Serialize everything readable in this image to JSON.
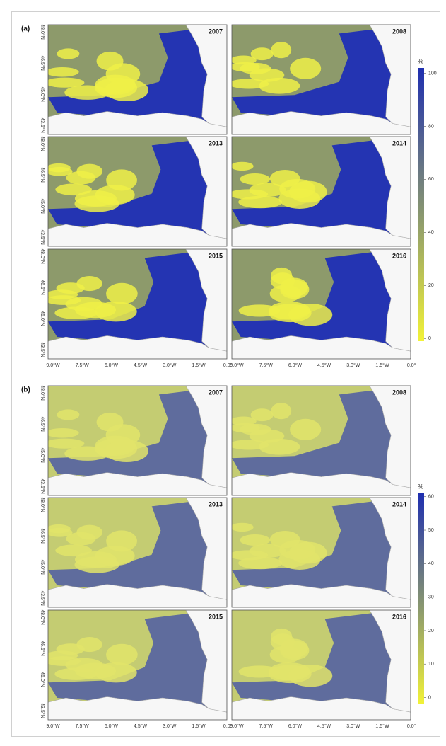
{
  "figures": [
    {
      "label": "(a)",
      "years": [
        "2007",
        "2008",
        "2013",
        "2014",
        "2015",
        "2016"
      ],
      "legend": {
        "unit": "%",
        "range": [
          -1,
          102
        ],
        "ticks": [
          0,
          20,
          40,
          60,
          80,
          100
        ]
      }
    },
    {
      "label": "(b)",
      "years": [
        "2007",
        "2008",
        "2013",
        "2014",
        "2015",
        "2016"
      ],
      "legend": {
        "unit": "%",
        "range": [
          -2,
          61
        ],
        "ticks": [
          0,
          10,
          20,
          30,
          40,
          50,
          60
        ]
      }
    }
  ],
  "lat_ticks": [
    "48.0°N",
    "46.5°N",
    "45.0°N",
    "43.5°N"
  ],
  "lon_ticks": [
    "9.0°W",
    "7.5°W",
    "6.0°W",
    "4.5°W",
    "3.0°W",
    "1.5°W",
    "0.0°"
  ]
}
